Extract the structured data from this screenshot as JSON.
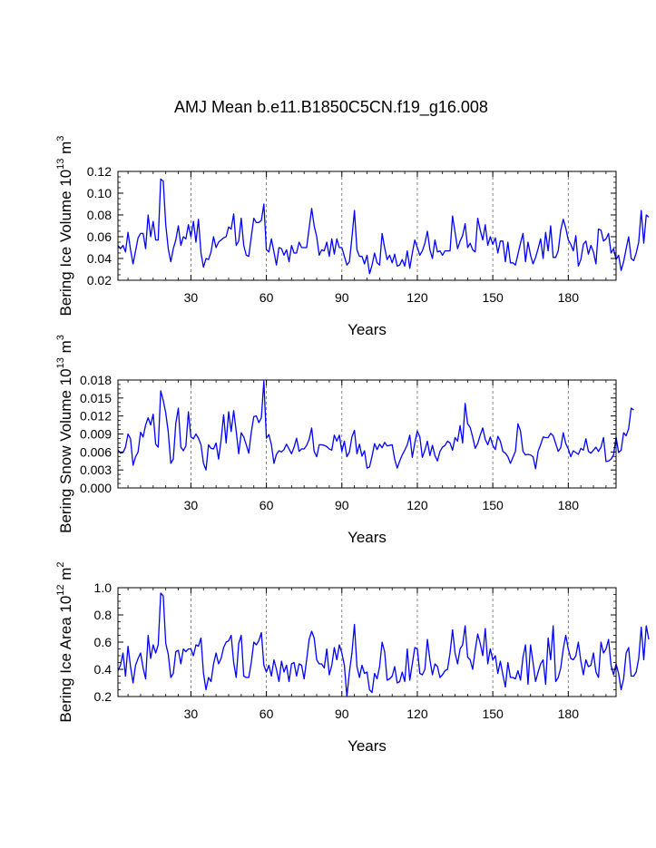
{
  "title": "AMJ Mean b.e11.B1850C5CN.f19_g16.008",
  "line_color": "#0000ff",
  "chart_data": [
    {
      "type": "line",
      "xlabel": "Years",
      "ylabel": {
        "text": "Bering Ice Volume 10",
        "sup": "13",
        "unit": " m",
        "unit_sup": "3"
      },
      "xlim": [
        1,
        199
      ],
      "ylim": [
        0.02,
        0.12
      ],
      "xticks": [
        30,
        60,
        90,
        120,
        150,
        180
      ],
      "yticks": [
        "0.02",
        "0.04",
        "0.06",
        "0.08",
        "0.10",
        "0.12"
      ],
      "gridlines_x": [
        30,
        60,
        90,
        120,
        150,
        180
      ],
      "series": [
        {
          "name": "Bering Ice Volume",
          "x_start": 1,
          "values": [
            0.052,
            0.049,
            0.052,
            0.046,
            0.064,
            0.048,
            0.035,
            0.047,
            0.059,
            0.063,
            0.063,
            0.049,
            0.08,
            0.06,
            0.074,
            0.057,
            0.057,
            0.113,
            0.111,
            0.071,
            0.049,
            0.037,
            0.049,
            0.057,
            0.07,
            0.052,
            0.06,
            0.058,
            0.071,
            0.06,
            0.074,
            0.055,
            0.076,
            0.045,
            0.032,
            0.04,
            0.039,
            0.046,
            0.06,
            0.05,
            0.055,
            0.057,
            0.059,
            0.06,
            0.069,
            0.067,
            0.081,
            0.052,
            0.056,
            0.077,
            0.052,
            0.043,
            0.042,
            0.06,
            0.077,
            0.073,
            0.073,
            0.075,
            0.09,
            0.048,
            0.046,
            0.058,
            0.046,
            0.034,
            0.05,
            0.049,
            0.043,
            0.048,
            0.037,
            0.052,
            0.045,
            0.045,
            0.055,
            0.05,
            0.05,
            0.05,
            0.068,
            0.086,
            0.07,
            0.06,
            0.043,
            0.048,
            0.047,
            0.055,
            0.042,
            0.058,
            0.044,
            0.058,
            0.05,
            0.05,
            0.042,
            0.034,
            0.037,
            0.059,
            0.084,
            0.048,
            0.042,
            0.042,
            0.035,
            0.043,
            0.026,
            0.034,
            0.045,
            0.036,
            0.034,
            0.063,
            0.05,
            0.039,
            0.043,
            0.036,
            0.044,
            0.033,
            0.034,
            0.039,
            0.033,
            0.047,
            0.031,
            0.045,
            0.057,
            0.05,
            0.043,
            0.047,
            0.054,
            0.065,
            0.048,
            0.04,
            0.057,
            0.046,
            0.047,
            0.043,
            0.047,
            0.047,
            0.047,
            0.079,
            0.064,
            0.049,
            0.056,
            0.061,
            0.072,
            0.05,
            0.054,
            0.048,
            0.046,
            0.077,
            0.066,
            0.057,
            0.071,
            0.052,
            0.06,
            0.053,
            0.059,
            0.045,
            0.056,
            0.056,
            0.037,
            0.055,
            0.036,
            0.036,
            0.034,
            0.044,
            0.054,
            0.063,
            0.037,
            0.055,
            0.043,
            0.035,
            0.041,
            0.049,
            0.058,
            0.04,
            0.064,
            0.047,
            0.07,
            0.041,
            0.041,
            0.047,
            0.066,
            0.076,
            0.068,
            0.057,
            0.053,
            0.047,
            0.061,
            0.033,
            0.039,
            0.053,
            0.056,
            0.044,
            0.052,
            0.046,
            0.035,
            0.067,
            0.066,
            0.056,
            0.058,
            0.063,
            0.045,
            0.049,
            0.039,
            0.043,
            0.029,
            0.037,
            0.049,
            0.06,
            0.04,
            0.038,
            0.045,
            0.055,
            0.084,
            0.054,
            0.08,
            0.078
          ]
        }
      ]
    },
    {
      "type": "line",
      "xlabel": "Years",
      "ylabel": {
        "text": "Bering Snow Volume 10",
        "sup": "13",
        "unit": " m",
        "unit_sup": "3"
      },
      "xlim": [
        1,
        199
      ],
      "ylim": [
        0.0,
        0.018
      ],
      "xticks": [
        30,
        60,
        90,
        120,
        150,
        180
      ],
      "yticks": [
        "0.000",
        "0.003",
        "0.006",
        "0.009",
        "0.012",
        "0.015",
        "0.018"
      ],
      "gridlines_x": [
        30,
        60,
        90,
        120,
        150,
        180
      ],
      "series": [
        {
          "name": "Bering Snow Volume",
          "x_start": 1,
          "values": [
            0.0063,
            0.0058,
            0.0059,
            0.0068,
            0.009,
            0.0082,
            0.0038,
            0.0052,
            0.006,
            0.0093,
            0.0085,
            0.0105,
            0.0117,
            0.0105,
            0.0123,
            0.0073,
            0.0068,
            0.0162,
            0.0146,
            0.0125,
            0.0093,
            0.0041,
            0.0048,
            0.0108,
            0.0133,
            0.0068,
            0.0062,
            0.007,
            0.0127,
            0.0085,
            0.0082,
            0.009,
            0.0083,
            0.0072,
            0.0041,
            0.003,
            0.0072,
            0.0066,
            0.0065,
            0.0075,
            0.0048,
            0.008,
            0.0122,
            0.0075,
            0.0127,
            0.0094,
            0.0129,
            0.0095,
            0.0057,
            0.0092,
            0.0085,
            0.0072,
            0.0058,
            0.0093,
            0.0119,
            0.012,
            0.0109,
            0.0117,
            0.0178,
            0.0083,
            0.0089,
            0.0072,
            0.0041,
            0.0056,
            0.0062,
            0.006,
            0.0064,
            0.0073,
            0.0065,
            0.0057,
            0.0068,
            0.0083,
            0.0061,
            0.0065,
            0.0065,
            0.0071,
            0.0081,
            0.01,
            0.0061,
            0.0052,
            0.0072,
            0.0072,
            0.0071,
            0.0069,
            0.0065,
            0.0063,
            0.0088,
            0.0078,
            0.0088,
            0.0061,
            0.0078,
            0.0052,
            0.006,
            0.0085,
            0.0096,
            0.0057,
            0.0073,
            0.0053,
            0.0062,
            0.0033,
            0.0035,
            0.0053,
            0.0074,
            0.0064,
            0.0073,
            0.0067,
            0.0076,
            0.007,
            0.0071,
            0.0072,
            0.0048,
            0.0033,
            0.0045,
            0.0055,
            0.0063,
            0.0072,
            0.0088,
            0.0051,
            0.0075,
            0.0095,
            0.0085,
            0.0051,
            0.0063,
            0.0078,
            0.0054,
            0.0071,
            0.0054,
            0.0045,
            0.0061,
            0.0068,
            0.0071,
            0.0078,
            0.0075,
            0.0063,
            0.0084,
            0.0078,
            0.0104,
            0.0075,
            0.0141,
            0.0107,
            0.0101,
            0.0085,
            0.0066,
            0.0074,
            0.0088,
            0.01,
            0.0081,
            0.0072,
            0.0085,
            0.0071,
            0.0064,
            0.0086,
            0.0078,
            0.0061,
            0.0058,
            0.0052,
            0.0041,
            0.0051,
            0.0061,
            0.0107,
            0.0095,
            0.0061,
            0.0055,
            0.0056,
            0.0055,
            0.0052,
            0.0032,
            0.0061,
            0.0072,
            0.0085,
            0.0084,
            0.0084,
            0.0091,
            0.0087,
            0.0074,
            0.0061,
            0.0067,
            0.0092,
            0.0074,
            0.0065,
            0.0052,
            0.0062,
            0.0059,
            0.0056,
            0.0066,
            0.0063,
            0.0082,
            0.0061,
            0.0058,
            0.0063,
            0.0068,
            0.0061,
            0.0068,
            0.0084,
            0.0044,
            0.0045,
            0.0048,
            0.0055,
            0.0085,
            0.0059,
            0.0063,
            0.0092,
            0.0087,
            0.0099,
            0.0133,
            0.013
          ]
        }
      ]
    },
    {
      "type": "line",
      "xlabel": "Years",
      "ylabel": {
        "text": "Bering Ice Area 10",
        "sup": "12",
        "unit": " m",
        "unit_sup": "2"
      },
      "xlim": [
        1,
        199
      ],
      "ylim": [
        0.2,
        1.0
      ],
      "xticks": [
        30,
        60,
        90,
        120,
        150,
        180
      ],
      "yticks": [
        "0.2",
        "0.4",
        "0.6",
        "0.8",
        "1.0"
      ],
      "gridlines_x": [
        30,
        60,
        90,
        120,
        150,
        180
      ],
      "series": [
        {
          "name": "Bering Ice Area",
          "x_start": 1,
          "values": [
            0.39,
            0.43,
            0.52,
            0.35,
            0.57,
            0.42,
            0.3,
            0.43,
            0.48,
            0.52,
            0.41,
            0.33,
            0.65,
            0.48,
            0.58,
            0.52,
            0.58,
            0.96,
            0.94,
            0.59,
            0.51,
            0.34,
            0.37,
            0.53,
            0.54,
            0.44,
            0.55,
            0.53,
            0.55,
            0.55,
            0.5,
            0.58,
            0.57,
            0.63,
            0.37,
            0.25,
            0.34,
            0.31,
            0.44,
            0.52,
            0.44,
            0.48,
            0.56,
            0.6,
            0.61,
            0.65,
            0.45,
            0.34,
            0.59,
            0.65,
            0.35,
            0.34,
            0.34,
            0.45,
            0.6,
            0.58,
            0.61,
            0.67,
            0.43,
            0.38,
            0.43,
            0.35,
            0.47,
            0.4,
            0.31,
            0.46,
            0.38,
            0.43,
            0.31,
            0.44,
            0.45,
            0.35,
            0.44,
            0.43,
            0.33,
            0.47,
            0.62,
            0.68,
            0.63,
            0.47,
            0.44,
            0.44,
            0.41,
            0.55,
            0.36,
            0.43,
            0.56,
            0.47,
            0.58,
            0.52,
            0.43,
            0.2,
            0.38,
            0.52,
            0.73,
            0.42,
            0.34,
            0.43,
            0.37,
            0.38,
            0.25,
            0.23,
            0.37,
            0.33,
            0.42,
            0.6,
            0.53,
            0.32,
            0.33,
            0.35,
            0.42,
            0.3,
            0.31,
            0.38,
            0.31,
            0.55,
            0.32,
            0.44,
            0.56,
            0.55,
            0.37,
            0.36,
            0.4,
            0.62,
            0.47,
            0.36,
            0.44,
            0.42,
            0.34,
            0.36,
            0.39,
            0.4,
            0.52,
            0.69,
            0.52,
            0.44,
            0.55,
            0.58,
            0.72,
            0.49,
            0.47,
            0.4,
            0.54,
            0.66,
            0.59,
            0.5,
            0.7,
            0.44,
            0.55,
            0.47,
            0.5,
            0.37,
            0.46,
            0.36,
            0.27,
            0.45,
            0.34,
            0.34,
            0.33,
            0.39,
            0.32,
            0.49,
            0.58,
            0.29,
            0.58,
            0.45,
            0.31,
            0.38,
            0.44,
            0.47,
            0.29,
            0.63,
            0.47,
            0.72,
            0.31,
            0.34,
            0.41,
            0.55,
            0.65,
            0.55,
            0.48,
            0.47,
            0.5,
            0.6,
            0.46,
            0.36,
            0.47,
            0.42,
            0.43,
            0.52,
            0.38,
            0.34,
            0.6,
            0.52,
            0.55,
            0.62,
            0.43,
            0.36,
            0.44,
            0.37,
            0.25,
            0.33,
            0.52,
            0.56,
            0.35,
            0.35,
            0.38,
            0.48,
            0.71,
            0.47,
            0.72,
            0.62
          ]
        }
      ]
    }
  ]
}
